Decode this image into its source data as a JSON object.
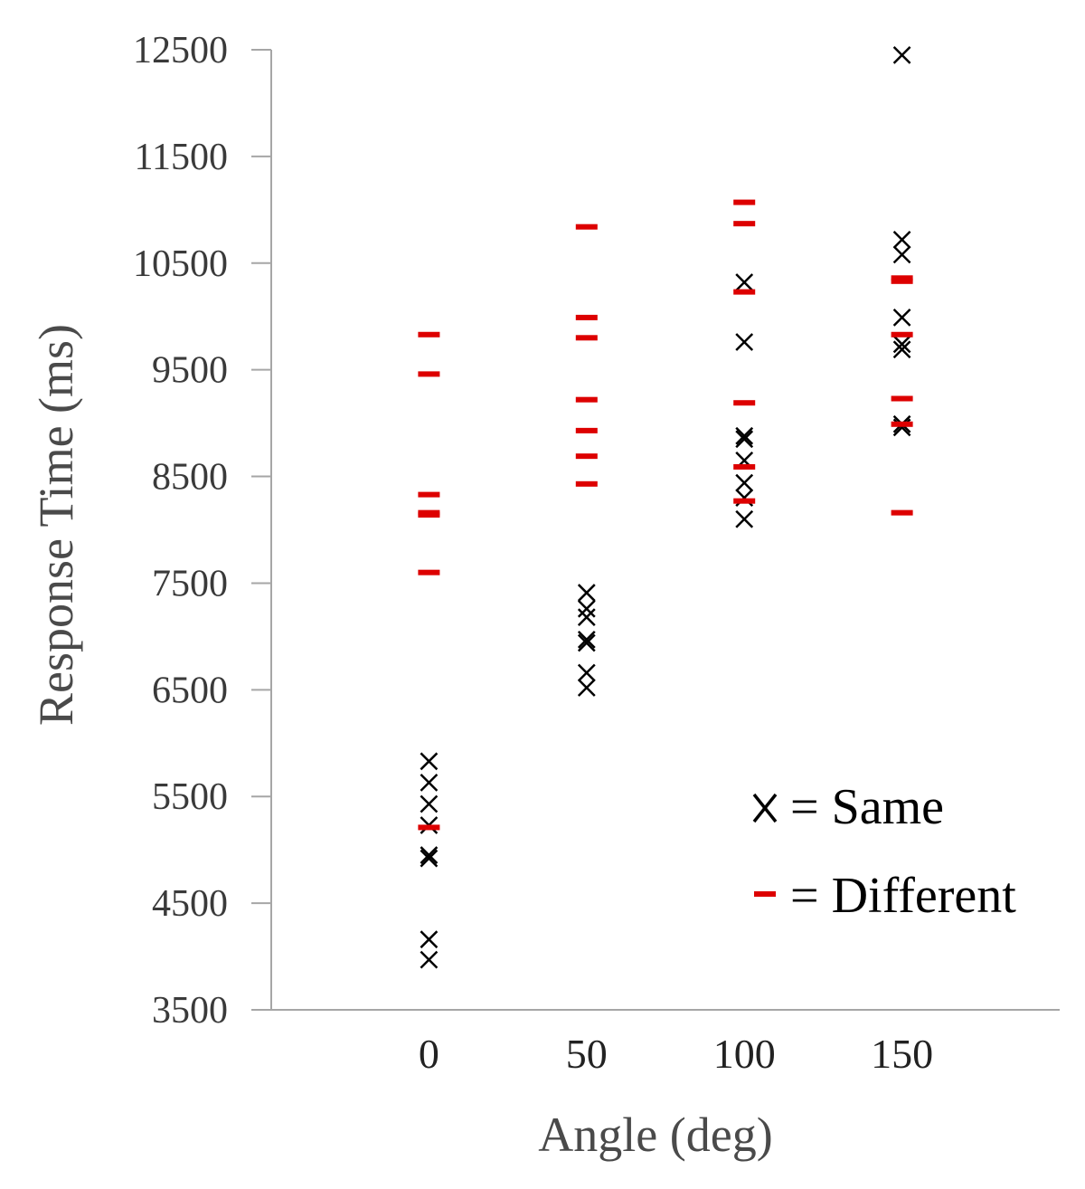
{
  "chart_data": {
    "type": "scatter",
    "title": "",
    "xlabel": "Angle (deg)",
    "ylabel": "Response Time (ms)",
    "ylim": [
      3500,
      12500
    ],
    "y_ticks": [
      3500,
      4500,
      5500,
      6500,
      7500,
      8500,
      9500,
      10500,
      11500,
      12500
    ],
    "y_tick_labels": [
      "3500",
      "4500",
      "5500",
      "6500",
      "7500",
      "8500",
      "9500",
      "10500",
      "11500",
      "12500"
    ],
    "x_ticks": [
      0,
      50,
      100,
      150
    ],
    "x_tick_labels": [
      "0",
      "50",
      "100",
      "150"
    ],
    "grid": false,
    "legend_position": "right",
    "series": [
      {
        "name": "Same",
        "marker": "x",
        "color": "#000000",
        "legend_label": "= Same",
        "points": [
          {
            "x": 0,
            "y": 5830
          },
          {
            "x": 0,
            "y": 5630
          },
          {
            "x": 0,
            "y": 5430
          },
          {
            "x": 0,
            "y": 5230
          },
          {
            "x": 0,
            "y": 4950
          },
          {
            "x": 0,
            "y": 4920
          },
          {
            "x": 0,
            "y": 4160
          },
          {
            "x": 0,
            "y": 3970
          },
          {
            "x": 50,
            "y": 7410
          },
          {
            "x": 50,
            "y": 7260
          },
          {
            "x": 50,
            "y": 7180
          },
          {
            "x": 50,
            "y": 6970
          },
          {
            "x": 50,
            "y": 6940
          },
          {
            "x": 50,
            "y": 6660
          },
          {
            "x": 50,
            "y": 6520
          },
          {
            "x": 100,
            "y": 10320
          },
          {
            "x": 100,
            "y": 9760
          },
          {
            "x": 100,
            "y": 8880
          },
          {
            "x": 100,
            "y": 8850
          },
          {
            "x": 100,
            "y": 8650
          },
          {
            "x": 100,
            "y": 8440
          },
          {
            "x": 100,
            "y": 8300
          },
          {
            "x": 100,
            "y": 8100
          },
          {
            "x": 150,
            "y": 12450
          },
          {
            "x": 150,
            "y": 10720
          },
          {
            "x": 150,
            "y": 10580
          },
          {
            "x": 150,
            "y": 9990
          },
          {
            "x": 150,
            "y": 9740
          },
          {
            "x": 150,
            "y": 9690
          },
          {
            "x": 150,
            "y": 8990
          },
          {
            "x": 150,
            "y": 8960
          }
        ]
      },
      {
        "name": "Different",
        "marker": "dash",
        "color": "#dd0000",
        "legend_label": "= Different",
        "points": [
          {
            "x": 0,
            "y": 9830
          },
          {
            "x": 0,
            "y": 9460
          },
          {
            "x": 0,
            "y": 8330
          },
          {
            "x": 0,
            "y": 8160
          },
          {
            "x": 0,
            "y": 8140
          },
          {
            "x": 0,
            "y": 7600
          },
          {
            "x": 0,
            "y": 5210
          },
          {
            "x": 50,
            "y": 10840
          },
          {
            "x": 50,
            "y": 9990
          },
          {
            "x": 50,
            "y": 9800
          },
          {
            "x": 50,
            "y": 9220
          },
          {
            "x": 50,
            "y": 8930
          },
          {
            "x": 50,
            "y": 8690
          },
          {
            "x": 50,
            "y": 8430
          },
          {
            "x": 100,
            "y": 11070
          },
          {
            "x": 100,
            "y": 10870
          },
          {
            "x": 100,
            "y": 10230
          },
          {
            "x": 100,
            "y": 9190
          },
          {
            "x": 100,
            "y": 8590
          },
          {
            "x": 100,
            "y": 8270
          },
          {
            "x": 150,
            "y": 10360
          },
          {
            "x": 150,
            "y": 10330
          },
          {
            "x": 150,
            "y": 9830
          },
          {
            "x": 150,
            "y": 9230
          },
          {
            "x": 150,
            "y": 8990
          },
          {
            "x": 150,
            "y": 8160
          }
        ]
      }
    ]
  }
}
